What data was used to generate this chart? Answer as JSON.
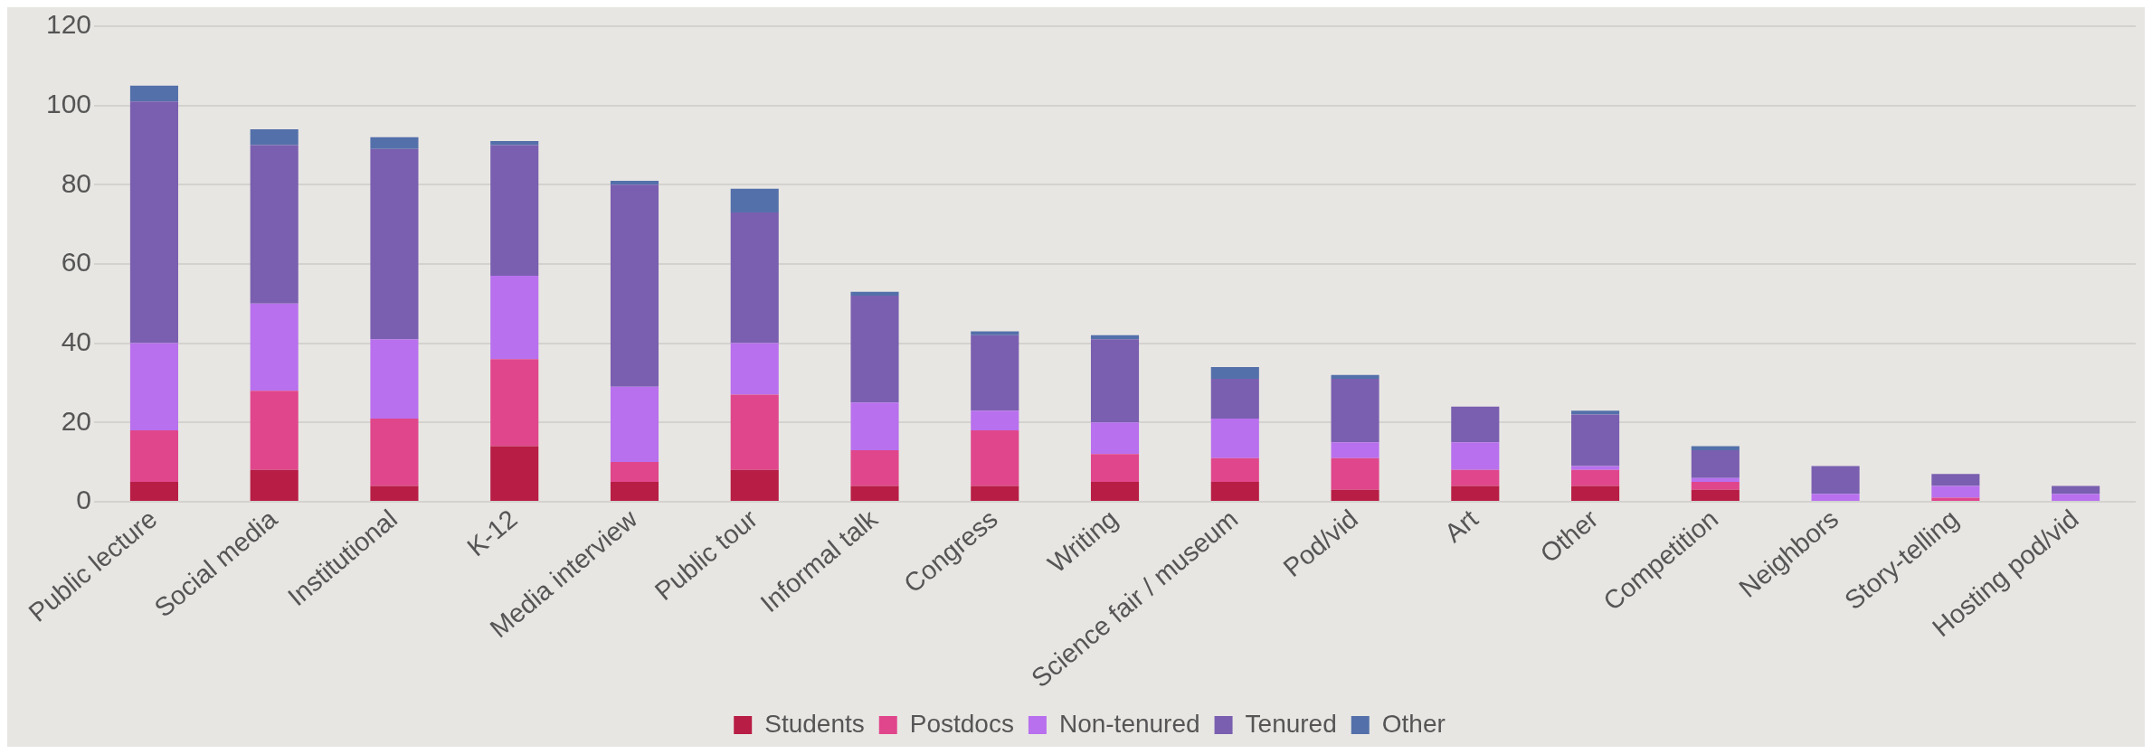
{
  "chart_data": {
    "type": "bar",
    "stacked": true,
    "categories": [
      "Public lecture",
      "Social media",
      "Institutional",
      "K-12",
      "Media interview",
      "Public tour",
      "Informal talk",
      "Congress",
      "Writing",
      "Science fair / museum",
      "Pod/vid",
      "Art",
      "Other",
      "Competition",
      "Neighbors",
      "Story-telling",
      "Hosting pod/vid"
    ],
    "series": [
      {
        "name": "Students",
        "color": "#b81d45",
        "values": [
          5,
          8,
          4,
          14,
          5,
          8,
          4,
          4,
          5,
          5,
          3,
          4,
          4,
          3,
          0,
          0,
          0
        ]
      },
      {
        "name": "Postdocs",
        "color": "#e0468c",
        "values": [
          13,
          20,
          17,
          22,
          5,
          19,
          9,
          14,
          7,
          6,
          8,
          4,
          4,
          2,
          0,
          1,
          0
        ]
      },
      {
        "name": "Non-tenured",
        "color": "#b870ee",
        "values": [
          22,
          22,
          20,
          21,
          19,
          13,
          12,
          5,
          8,
          10,
          4,
          7,
          1,
          1,
          2,
          3,
          2
        ]
      },
      {
        "name": "Tenured",
        "color": "#7a5fb0",
        "values": [
          61,
          40,
          48,
          33,
          51,
          33,
          27,
          19,
          21,
          10,
          16,
          9,
          13,
          7,
          7,
          3,
          2
        ]
      },
      {
        "name": "Other",
        "color": "#5470aa",
        "values": [
          4,
          4,
          3,
          1,
          1,
          6,
          1,
          1,
          1,
          3,
          1,
          0,
          1,
          1,
          0,
          0,
          0
        ]
      }
    ],
    "ylim": [
      0,
      120
    ],
    "yticks": [
      0,
      20,
      40,
      60,
      80,
      100,
      120
    ],
    "grid": "y",
    "legend": "bottom"
  }
}
